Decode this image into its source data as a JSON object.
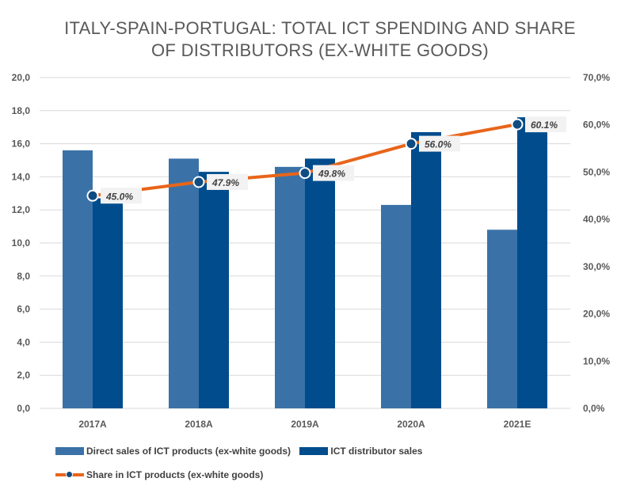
{
  "chart_data": {
    "type": "bar",
    "title_lines": [
      "ITALY-SPAIN-PORTUGAL: TOTAL ICT SPENDING AND SHARE",
      "OF DISTRIBUTORS (EX-WHITE GOODS)"
    ],
    "categories": [
      "2017A",
      "2018A",
      "2019A",
      "2020A",
      "2021E"
    ],
    "series": [
      {
        "name": "Direct sales of ICT products (ex-white goods)",
        "type": "bar",
        "axis": "left",
        "color": "#3A72A8",
        "values": [
          15.6,
          15.1,
          14.6,
          12.3,
          10.8
        ]
      },
      {
        "name": "ICT distributor sales",
        "type": "bar",
        "axis": "left",
        "color": "#004C8C",
        "values": [
          12.7,
          14.3,
          15.1,
          16.7,
          17.6
        ]
      },
      {
        "name": "Share in ICT products (ex-white goods)",
        "type": "line",
        "axis": "right",
        "color": "#E8651A",
        "marker_color": "#0F4C81",
        "values": [
          45.0,
          47.9,
          49.8,
          56.0,
          60.1
        ],
        "labels": [
          "45.0%",
          "47.9%",
          "49.8%",
          "56.0%",
          "60.1%"
        ]
      }
    ],
    "y_left": {
      "min": 0,
      "max": 20,
      "ticks": [
        "0,0",
        "2,0",
        "4,0",
        "6,0",
        "8,0",
        "10,0",
        "12,0",
        "14,0",
        "16,0",
        "18,0",
        "20,0"
      ]
    },
    "y_right": {
      "min": 0,
      "max": 70,
      "ticks": [
        "0,0%",
        "10,0%",
        "20,0%",
        "30,0%",
        "40,0%",
        "50,0%",
        "60,0%",
        "70,0%"
      ]
    },
    "grid": true,
    "grid_color": "#D9D9D9",
    "legend_position": "bottom"
  }
}
